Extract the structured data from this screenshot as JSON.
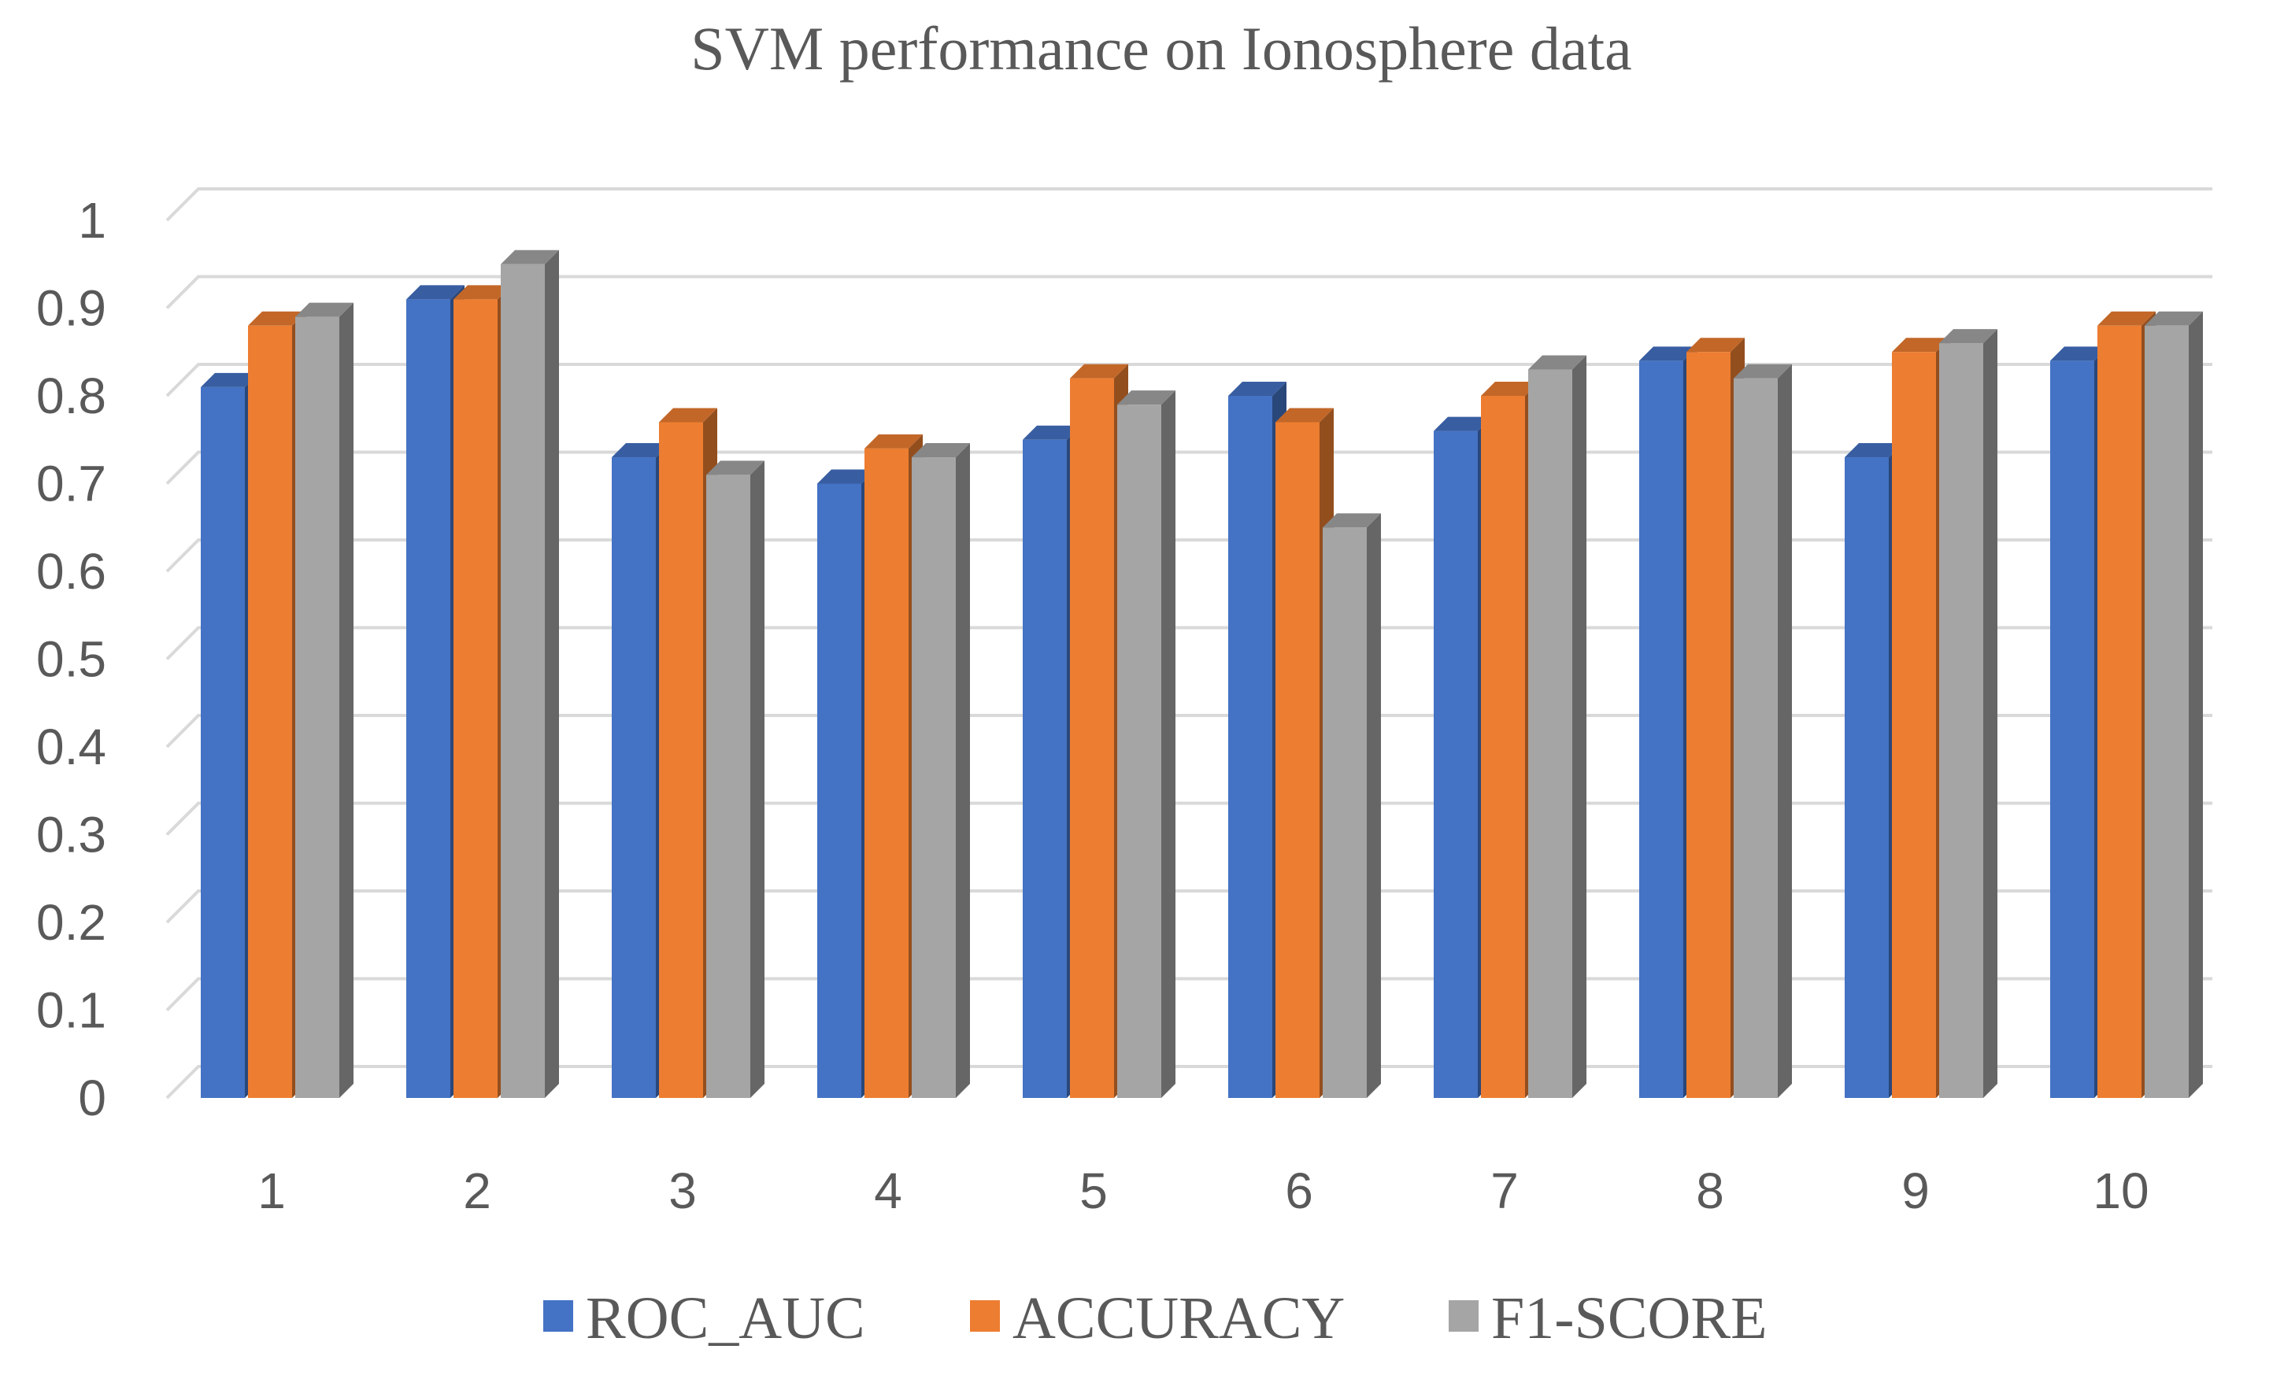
{
  "chart_data": {
    "type": "bar",
    "title": "SVM performance on Ionosphere data",
    "xlabel": "",
    "ylabel": "",
    "categories": [
      "1",
      "2",
      "3",
      "4",
      "5",
      "6",
      "7",
      "8",
      "9",
      "10"
    ],
    "series": [
      {
        "name": "ROC_AUC",
        "color": "#4472C4",
        "values": [
          0.81,
          0.91,
          0.73,
          0.7,
          0.75,
          0.8,
          0.76,
          0.84,
          0.73,
          0.84
        ]
      },
      {
        "name": "ACCURACY",
        "color": "#ED7D31",
        "values": [
          0.88,
          0.91,
          0.77,
          0.74,
          0.82,
          0.77,
          0.8,
          0.85,
          0.85,
          0.88
        ]
      },
      {
        "name": "F1-SCORE",
        "color": "#A5A5A5",
        "values": [
          0.89,
          0.95,
          0.71,
          0.73,
          0.79,
          0.65,
          0.83,
          0.82,
          0.86,
          0.88
        ]
      }
    ],
    "ylim": [
      0,
      1
    ],
    "yticks": [
      "0",
      "0.1",
      "0.2",
      "0.3",
      "0.4",
      "0.5",
      "0.6",
      "0.7",
      "0.8",
      "0.9",
      "1"
    ],
    "grid": true,
    "style": "3d-clustered-column",
    "legend_position": "bottom"
  }
}
